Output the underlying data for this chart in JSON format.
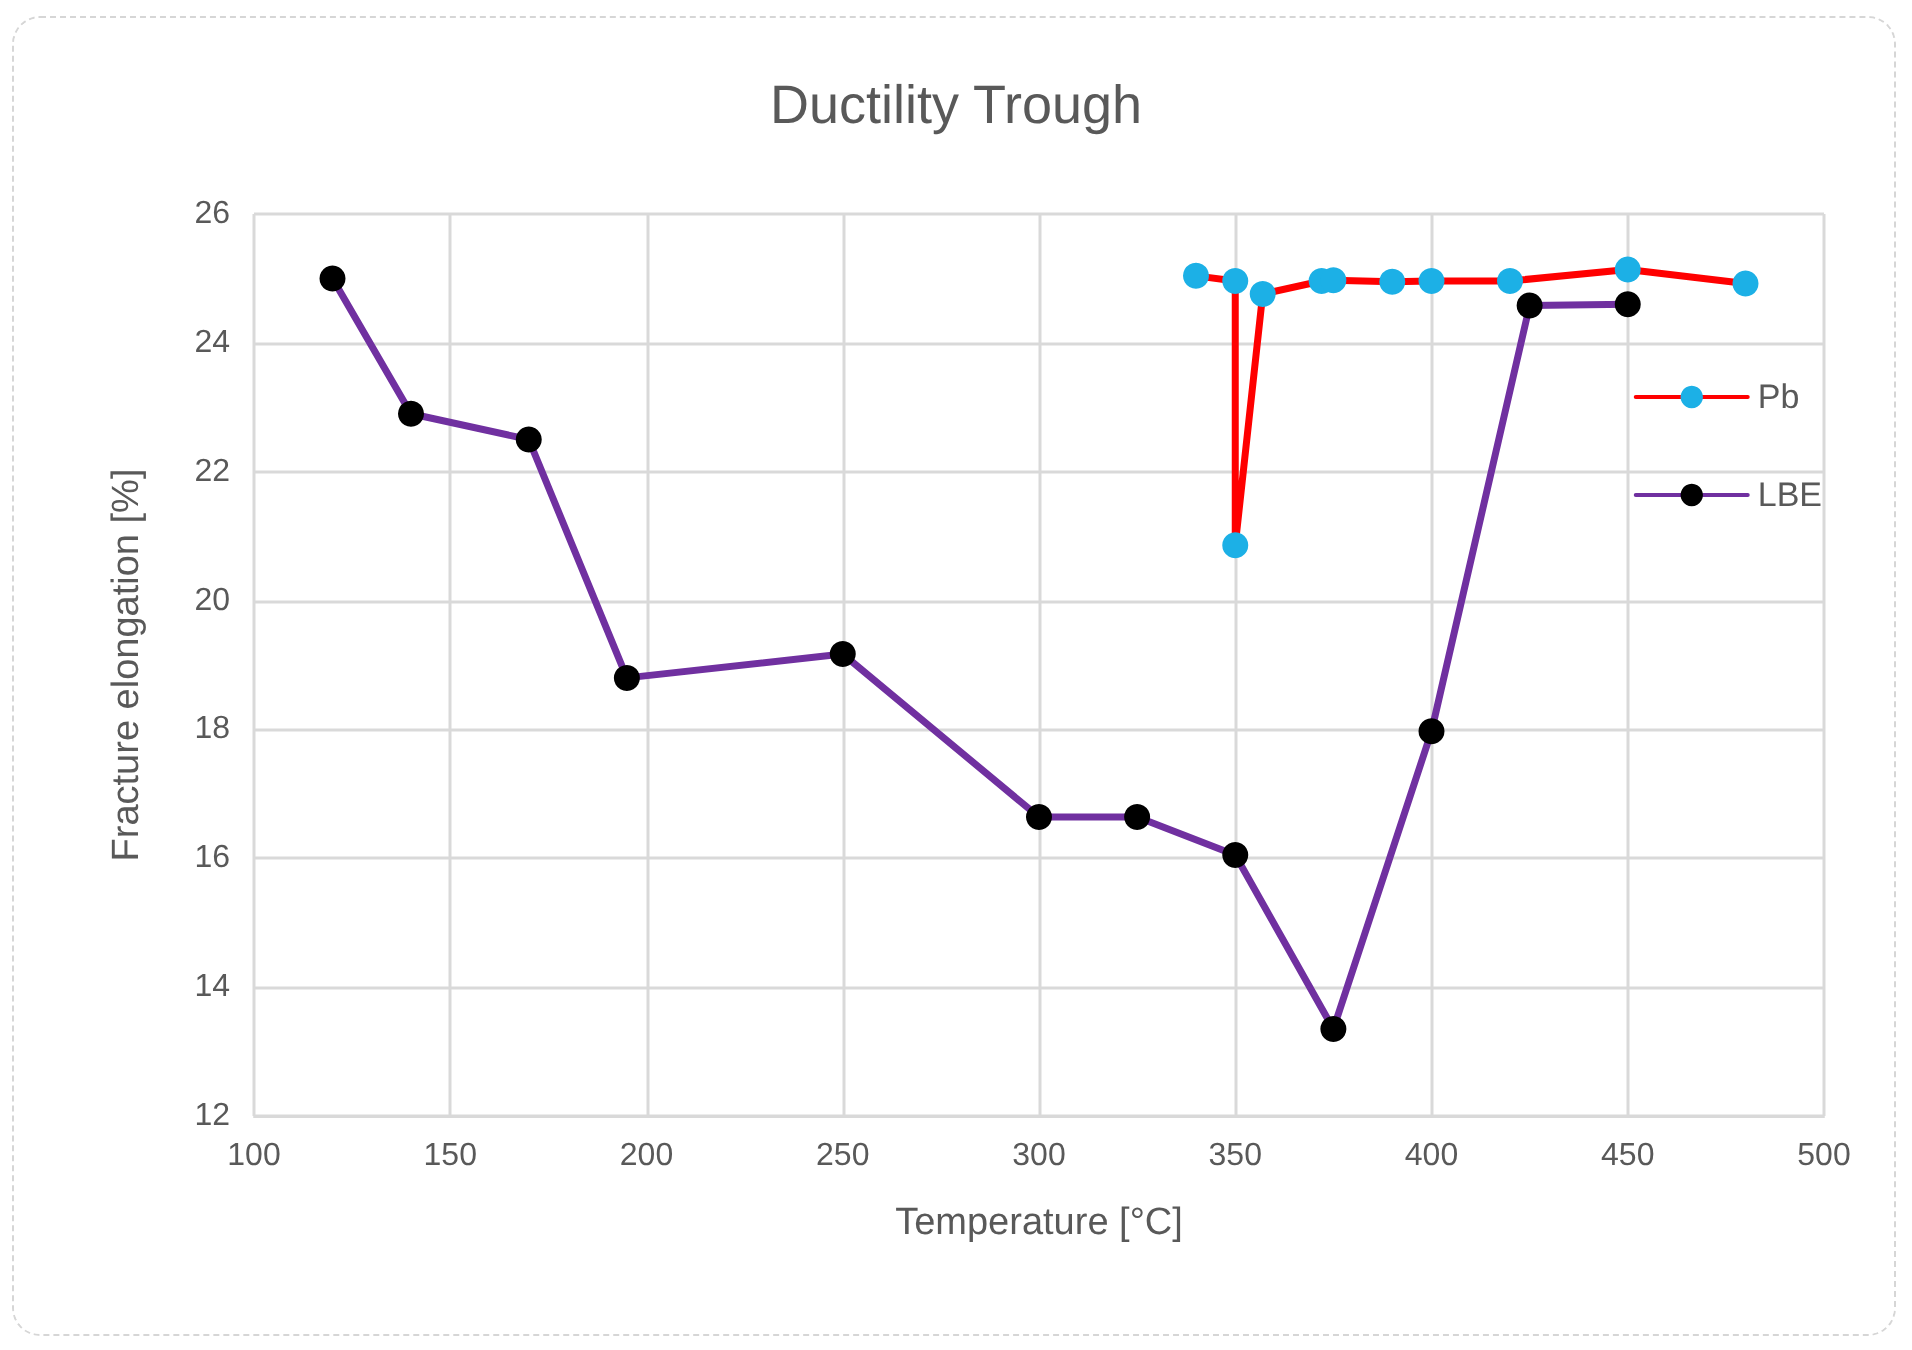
{
  "chart_data": {
    "type": "line",
    "title": "Ductility Trough",
    "xlabel": "Temperature [°C]",
    "ylabel": "Fracture elongation [%]",
    "xlim": [
      100,
      500
    ],
    "xticks": [
      100,
      150,
      200,
      250,
      300,
      350,
      400,
      450,
      500
    ],
    "ylim": [
      12,
      26
    ],
    "yticks": [
      12,
      14,
      16,
      18,
      20,
      22,
      24,
      26
    ],
    "grid": true,
    "legend": "right",
    "marker": "circle",
    "series": [
      {
        "name": "Pb",
        "color": "#ff0000",
        "colors": [
          "#1cb0e6",
          "#1cb0e6",
          "#1cb0e6",
          "#1cb0e6",
          "#1cb0e6",
          "#1cb0e6",
          "#1cb0e6",
          "#1cb0e6",
          "#1cb0e6",
          "#1cb0e6",
          "#1cb0e6"
        ],
        "x": [
          340,
          350,
          350,
          357,
          372,
          375,
          390,
          400,
          420,
          450,
          480
        ],
        "values": [
          25.04,
          24.96,
          20.86,
          24.76,
          24.96,
          24.97,
          24.95,
          24.96,
          24.96,
          25.14,
          24.92
        ]
      },
      {
        "name": "LBE",
        "color": "#7030a0",
        "colors": [
          "#000000",
          "#000000",
          "#000000",
          "#000000",
          "#000000",
          "#000000",
          "#000000",
          "#000000",
          "#000000",
          "#000000",
          "#000000",
          "#000000"
        ],
        "x": [
          120,
          140,
          170,
          195,
          250,
          300,
          325,
          350,
          375,
          400,
          425,
          450
        ],
        "values": [
          25.0,
          22.9,
          22.5,
          18.8,
          19.17,
          16.64,
          16.64,
          16.05,
          13.35,
          17.97,
          24.58,
          24.6
        ]
      }
    ]
  }
}
